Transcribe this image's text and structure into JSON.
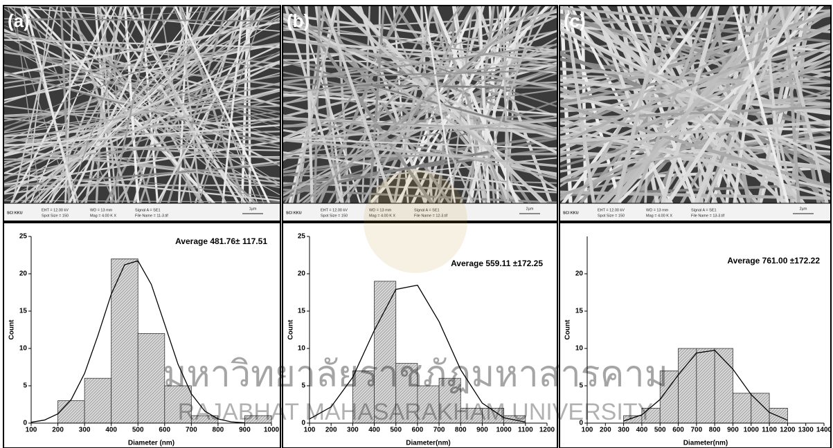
{
  "images": [
    {
      "label": "(a)",
      "footer": [
        "SCI KKU",
        "EHT = 12.00 kV",
        "Spot Size = 150",
        "WD = 13 mm",
        "Mag = 4.00 K X",
        "Signal A = SE1",
        "File Name = 11-3.tif"
      ],
      "scale": "1µm"
    },
    {
      "label": "(b)",
      "footer": [
        "SCI KKU",
        "EHT = 12.00 kV",
        "Spot Size = 150",
        "WD = 13 mm",
        "Mag = 4.00 K X",
        "Signal A = SE1",
        "File Name = 12-3.tif"
      ],
      "scale": "2µm"
    },
    {
      "label": "(c)",
      "footer": [
        "SCI KKU",
        "EHT = 12.00 kV",
        "Spot Size = 150",
        "WD = 13 mm",
        "Mag = 4.00 K X",
        "Signal A = SE1",
        "File Name = 13-3.tif"
      ],
      "scale": "2µm"
    }
  ],
  "watermark": {
    "thai": "มหาวิทยาลัยราชภัฏมหาสารคาม",
    "english": "RAJABHAT MAHASARAKHAM UNIVERSITY"
  },
  "chart_data": [
    {
      "type": "histogram",
      "xlabel": "Diameter (nm)",
      "ylabel": "Count",
      "annotation": "Average 481.76± 117.51",
      "color": "#bdbdbd",
      "bins": [
        200,
        300,
        400,
        500,
        600,
        700,
        800,
        900,
        1000
      ],
      "values": [
        3,
        6,
        22,
        12,
        5,
        1,
        0,
        1
      ],
      "xlim": [
        100,
        1000
      ],
      "xticks": [
        100,
        200,
        300,
        400,
        500,
        600,
        700,
        800,
        900,
        1000
      ],
      "ylim": [
        0,
        25
      ],
      "yticks": [
        0,
        5,
        10,
        15,
        20,
        25
      ],
      "fit": {
        "x": [
          100,
          150,
          200,
          250,
          300,
          350,
          400,
          450,
          500,
          550,
          600,
          650,
          700,
          750,
          800,
          850,
          900
        ],
        "y": [
          0.11,
          0.41,
          1.24,
          3.15,
          6.65,
          11.73,
          17.27,
          21.2,
          21.74,
          18.58,
          13.26,
          7.89,
          3.92,
          1.62,
          0.56,
          0.16,
          0.04
        ]
      }
    },
    {
      "type": "histogram",
      "xlabel": "Diameter(nm)",
      "ylabel": "Count",
      "annotation": "Average 559.11 ±172.25",
      "color": "#bdbdbd",
      "bins": [
        300,
        400,
        500,
        600,
        700,
        800,
        900,
        1000,
        1100
      ],
      "values": [
        7,
        19,
        8,
        5,
        6,
        2,
        2,
        1
      ],
      "xlim": [
        100,
        1200
      ],
      "xticks": [
        100,
        200,
        300,
        400,
        500,
        600,
        700,
        800,
        900,
        1000,
        1100,
        1200
      ],
      "ylim": [
        0,
        25
      ],
      "yticks": [
        0,
        5,
        10,
        15,
        20,
        25
      ],
      "fit": {
        "x": [
          100,
          200,
          300,
          400,
          500,
          600,
          700,
          800,
          900,
          1000,
          1100
        ],
        "y": [
          0.55,
          2.17,
          6.13,
          12.42,
          17.91,
          18.47,
          13.59,
          7.15,
          2.68,
          0.72,
          0.14
        ]
      }
    },
    {
      "type": "histogram",
      "xlabel": "Diameter(nm)",
      "ylabel": "Count",
      "annotation": "Average 761.00 ±172.22",
      "color": "#bdbdbd",
      "bins": [
        300,
        400,
        500,
        600,
        700,
        800,
        900,
        1000,
        1100,
        1200
      ],
      "values": [
        1,
        2,
        7,
        10,
        10,
        10,
        4,
        4,
        2
      ],
      "xlim": [
        100,
        1400
      ],
      "xticks": [
        100,
        200,
        300,
        400,
        500,
        600,
        700,
        800,
        900,
        1000,
        1100,
        1200,
        1300,
        1400
      ],
      "ylim": [
        0,
        25
      ],
      "yticks": [
        0,
        5,
        10,
        15,
        20
      ],
      "fit": {
        "x": [
          300,
          400,
          500,
          600,
          700,
          800,
          900,
          1000,
          1100,
          1200
        ],
        "y": [
          0.28,
          1.11,
          3.17,
          6.46,
          9.39,
          9.75,
          7.22,
          3.82,
          1.44,
          0.39
        ]
      }
    }
  ]
}
